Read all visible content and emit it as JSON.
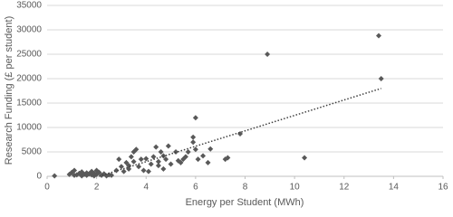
{
  "chart_data": {
    "type": "scatter",
    "x_label": "Energy per Student (MWh)",
    "y_label": "Research Funding (£ per student)",
    "xlim": [
      0,
      16
    ],
    "xticks": [
      0,
      2,
      4,
      6,
      8,
      10,
      12,
      14,
      16
    ],
    "ylim": [
      0,
      35000
    ],
    "yticks": [
      0,
      5000,
      10000,
      15000,
      20000,
      25000,
      30000,
      35000
    ],
    "grid": true,
    "color": "#595959",
    "x": [
      0.3,
      0.9,
      1.0,
      1.1,
      1.1,
      1.2,
      1.3,
      1.4,
      1.4,
      1.5,
      1.6,
      1.6,
      1.7,
      1.8,
      1.8,
      1.9,
      1.9,
      2.0,
      2.0,
      2.1,
      2.2,
      2.3,
      2.4,
      2.5,
      2.6,
      2.8,
      2.9,
      3.0,
      3.1,
      3.2,
      3.3,
      3.3,
      3.4,
      3.5,
      3.5,
      3.6,
      3.7,
      3.8,
      3.9,
      4.0,
      4.1,
      4.2,
      4.3,
      4.4,
      4.5,
      4.5,
      4.6,
      4.7,
      4.7,
      4.8,
      4.9,
      5.0,
      5.2,
      5.3,
      5.4,
      5.5,
      5.6,
      5.7,
      5.9,
      5.9,
      6.0,
      6.0,
      6.1,
      6.3,
      6.5,
      6.6,
      7.2,
      7.3,
      7.8,
      8.9,
      10.4,
      13.4,
      13.5
    ],
    "values": [
      100,
      400,
      800,
      200,
      1200,
      300,
      600,
      100,
      900,
      400,
      200,
      700,
      500,
      300,
      1000,
      100,
      600,
      400,
      1200,
      800,
      200,
      500,
      100,
      300,
      200,
      1200,
      3500,
      2000,
      1000,
      2800,
      1500,
      2200,
      4000,
      3000,
      5000,
      5500,
      2000,
      3500,
      1200,
      3600,
      1000,
      2500,
      4000,
      6000,
      3000,
      2200,
      5000,
      4200,
      1500,
      3500,
      6200,
      2500,
      5000,
      3200,
      2800,
      3500,
      4000,
      5000,
      7000,
      8000,
      12000,
      5500,
      3500,
      4200,
      2800,
      5600,
      3500,
      3800,
      8700,
      25000,
      3800,
      28800,
      20000
    ],
    "trendline": {
      "x": [
        2.1,
        13.5
      ],
      "y": [
        0,
        18000
      ],
      "color": "#404040"
    }
  }
}
